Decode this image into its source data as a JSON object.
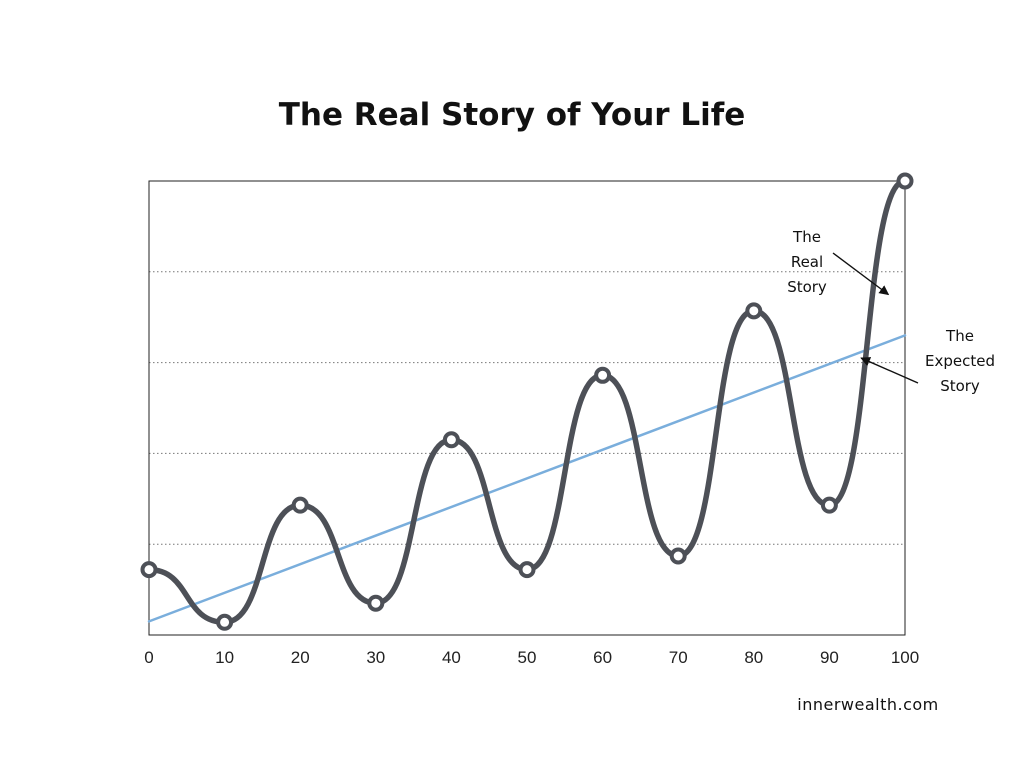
{
  "chart_data": {
    "type": "line",
    "title": "The Real Story of Your Life",
    "xlabel": "",
    "ylabel": "",
    "xlim": [
      0,
      100
    ],
    "ylim": [
      0,
      5
    ],
    "xticks": [
      0,
      10,
      20,
      30,
      40,
      50,
      60,
      70,
      80,
      90,
      100
    ],
    "grid": true,
    "series": [
      {
        "name": "The Real Story",
        "color": "#4d5057",
        "markers": true,
        "x": [
          0,
          10,
          20,
          30,
          40,
          50,
          60,
          70,
          80,
          90,
          100
        ],
        "y": [
          0.72,
          0.14,
          1.43,
          0.35,
          2.15,
          0.72,
          2.86,
          0.87,
          3.57,
          1.43,
          5.0
        ]
      },
      {
        "name": "The Expected Story",
        "color": "#7aaedc",
        "markers": false,
        "x": [
          0,
          100
        ],
        "y": [
          0.15,
          3.3
        ]
      }
    ],
    "annotations": [
      {
        "lines": [
          "The",
          "Real",
          "Story"
        ],
        "arrow_to": {
          "x": 97.8,
          "y": 3.75
        }
      },
      {
        "lines": [
          "The",
          "Expected",
          "Story"
        ],
        "arrow_to": {
          "x": 94.2,
          "y": 3.05
        }
      }
    ]
  },
  "footer": {
    "credit": "innerwealth.com"
  }
}
